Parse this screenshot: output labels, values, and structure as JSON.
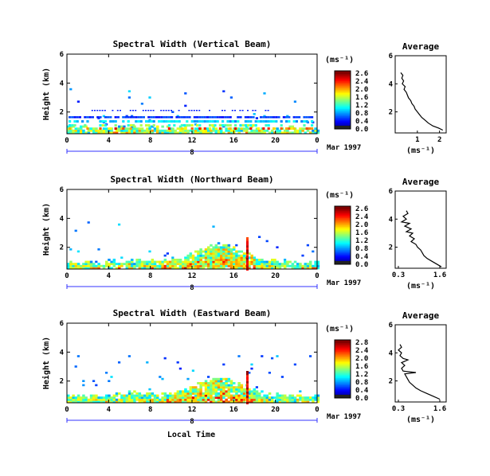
{
  "figure": {
    "local_time_label": "Local Time",
    "date_label": "Mar 1997",
    "date_tick": "8",
    "height_label": "Height (km)",
    "units_label": "(ms⁻¹)",
    "average_title": "Average"
  },
  "chart_data": [
    {
      "type": "heatmap",
      "title": "Spectral Width (Vertical Beam)",
      "xlabel": "Local Time",
      "ylabel": "Height (km)",
      "xlim": [
        0,
        24
      ],
      "ylim": [
        0.5,
        6
      ],
      "x_ticks": [
        "0",
        "4",
        "8",
        "12",
        "16",
        "20",
        "0"
      ],
      "y_ticks": [
        "2",
        "4",
        "6"
      ],
      "colorbar": {
        "label": "(ms⁻¹)",
        "range": [
          0,
          2.8
        ],
        "ticks": [
          "2.6",
          "2.4",
          "2.0",
          "1.6",
          "1.2",
          "0.8",
          "0.4",
          "0.0"
        ]
      },
      "profile": {
        "title": "Average",
        "xlabel": "(ms⁻¹)",
        "xlim": [
          0,
          2.3
        ],
        "x_ticks": [
          "1",
          "2"
        ],
        "y_ticks": [
          "2",
          "4",
          "6"
        ],
        "points": [
          [
            0.25,
            4.8
          ],
          [
            0.35,
            4.6
          ],
          [
            0.3,
            4.4
          ],
          [
            0.38,
            4.2
          ],
          [
            0.32,
            4.0
          ],
          [
            0.45,
            3.8
          ],
          [
            0.4,
            3.6
          ],
          [
            0.5,
            3.4
          ],
          [
            0.55,
            3.2
          ],
          [
            0.6,
            3.0
          ],
          [
            0.7,
            2.8
          ],
          [
            0.75,
            2.6
          ],
          [
            0.85,
            2.4
          ],
          [
            0.9,
            2.2
          ],
          [
            1.0,
            2.0
          ],
          [
            1.1,
            1.8
          ],
          [
            1.2,
            1.6
          ],
          [
            1.35,
            1.4
          ],
          [
            1.5,
            1.2
          ],
          [
            1.7,
            1.0
          ],
          [
            1.95,
            0.85
          ],
          [
            2.15,
            0.7
          ]
        ]
      }
    },
    {
      "type": "heatmap",
      "title": "Spectral Width (Northward Beam)",
      "xlabel": "Local Time",
      "ylabel": "Height (km)",
      "xlim": [
        0,
        24
      ],
      "ylim": [
        0.5,
        6
      ],
      "x_ticks": [
        "0",
        "4",
        "8",
        "12",
        "16",
        "20",
        "0"
      ],
      "y_ticks": [
        "2",
        "4",
        "6"
      ],
      "colorbar": {
        "label": "(ms⁻¹)",
        "range": [
          0,
          2.8
        ],
        "ticks": [
          "2.6",
          "2.4",
          "2.0",
          "1.6",
          "1.2",
          "0.8",
          "0.4",
          "0.0"
        ]
      },
      "profile": {
        "title": "Average",
        "xlabel": "(ms⁻¹)",
        "xlim": [
          0.2,
          1.8
        ],
        "x_ticks": [
          "0.3",
          "1.6"
        ],
        "y_ticks": [
          "2",
          "4",
          "6"
        ],
        "points": [
          [
            0.55,
            4.6
          ],
          [
            0.6,
            4.4
          ],
          [
            0.45,
            4.2
          ],
          [
            0.55,
            4.0
          ],
          [
            0.4,
            3.8
          ],
          [
            0.65,
            3.7
          ],
          [
            0.5,
            3.5
          ],
          [
            0.7,
            3.3
          ],
          [
            0.55,
            3.1
          ],
          [
            0.75,
            3.0
          ],
          [
            0.65,
            2.8
          ],
          [
            0.8,
            2.6
          ],
          [
            0.7,
            2.4
          ],
          [
            0.85,
            2.2
          ],
          [
            0.9,
            2.0
          ],
          [
            1.0,
            1.8
          ],
          [
            1.05,
            1.6
          ],
          [
            1.1,
            1.4
          ],
          [
            1.2,
            1.2
          ],
          [
            1.35,
            1.0
          ],
          [
            1.5,
            0.8
          ],
          [
            1.65,
            0.6
          ]
        ]
      }
    },
    {
      "type": "heatmap",
      "title": "Spectral Width (Eastward Beam)",
      "xlabel": "Local Time",
      "ylabel": "Height (km)",
      "xlim": [
        0,
        24
      ],
      "ylim": [
        0.5,
        6
      ],
      "x_ticks": [
        "0",
        "4",
        "8",
        "12",
        "16",
        "20",
        "0"
      ],
      "y_ticks": [
        "2",
        "4",
        "6"
      ],
      "colorbar": {
        "label": "(ms⁻¹)",
        "range": [
          0,
          2.8
        ],
        "ticks": [
          "2.8",
          "2.4",
          "2.0",
          "1.6",
          "1.2",
          "0.8",
          "0.4",
          "0.0"
        ]
      },
      "profile": {
        "title": "Average",
        "xlabel": "(ms⁻¹)",
        "xlim": [
          0.2,
          1.8
        ],
        "x_ticks": [
          "0.3",
          "1.6"
        ],
        "y_ticks": [
          "2",
          "4",
          "6"
        ],
        "points": [
          [
            0.35,
            4.6
          ],
          [
            0.4,
            4.4
          ],
          [
            0.3,
            4.2
          ],
          [
            0.4,
            4.0
          ],
          [
            0.35,
            3.8
          ],
          [
            0.45,
            3.6
          ],
          [
            0.6,
            3.5
          ],
          [
            0.4,
            3.3
          ],
          [
            0.5,
            3.1
          ],
          [
            0.4,
            2.9
          ],
          [
            0.45,
            2.7
          ],
          [
            0.85,
            2.6
          ],
          [
            0.5,
            2.5
          ],
          [
            0.55,
            2.3
          ],
          [
            0.6,
            2.1
          ],
          [
            0.65,
            1.9
          ],
          [
            0.75,
            1.7
          ],
          [
            0.85,
            1.5
          ],
          [
            1.0,
            1.3
          ],
          [
            1.2,
            1.1
          ],
          [
            1.4,
            0.9
          ],
          [
            1.6,
            0.7
          ]
        ]
      }
    }
  ]
}
